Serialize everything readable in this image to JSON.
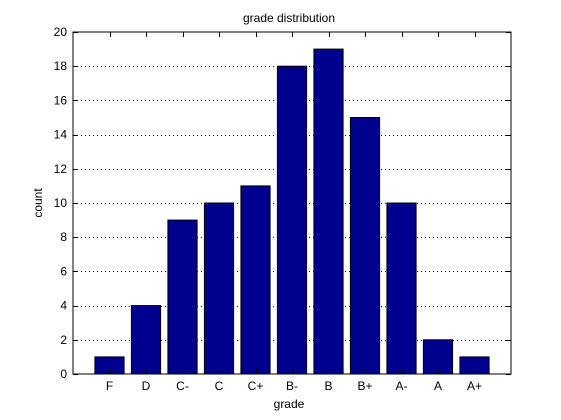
{
  "chart_data": {
    "type": "bar",
    "title": "grade distribution",
    "xlabel": "grade",
    "ylabel": "count",
    "categories": [
      "F",
      "D",
      "C-",
      "C",
      "C+",
      "B-",
      "B",
      "B+",
      "A-",
      "A",
      "A+"
    ],
    "values": [
      1,
      4,
      9,
      10,
      11,
      18,
      19,
      15,
      10,
      2,
      1
    ],
    "ylim": [
      0,
      20
    ],
    "yticks": [
      0,
      2,
      4,
      6,
      8,
      10,
      12,
      14,
      16,
      18,
      20
    ],
    "grid": "y-dotted",
    "bar_color": "#00008f",
    "bar_edge_color": "#000000"
  }
}
